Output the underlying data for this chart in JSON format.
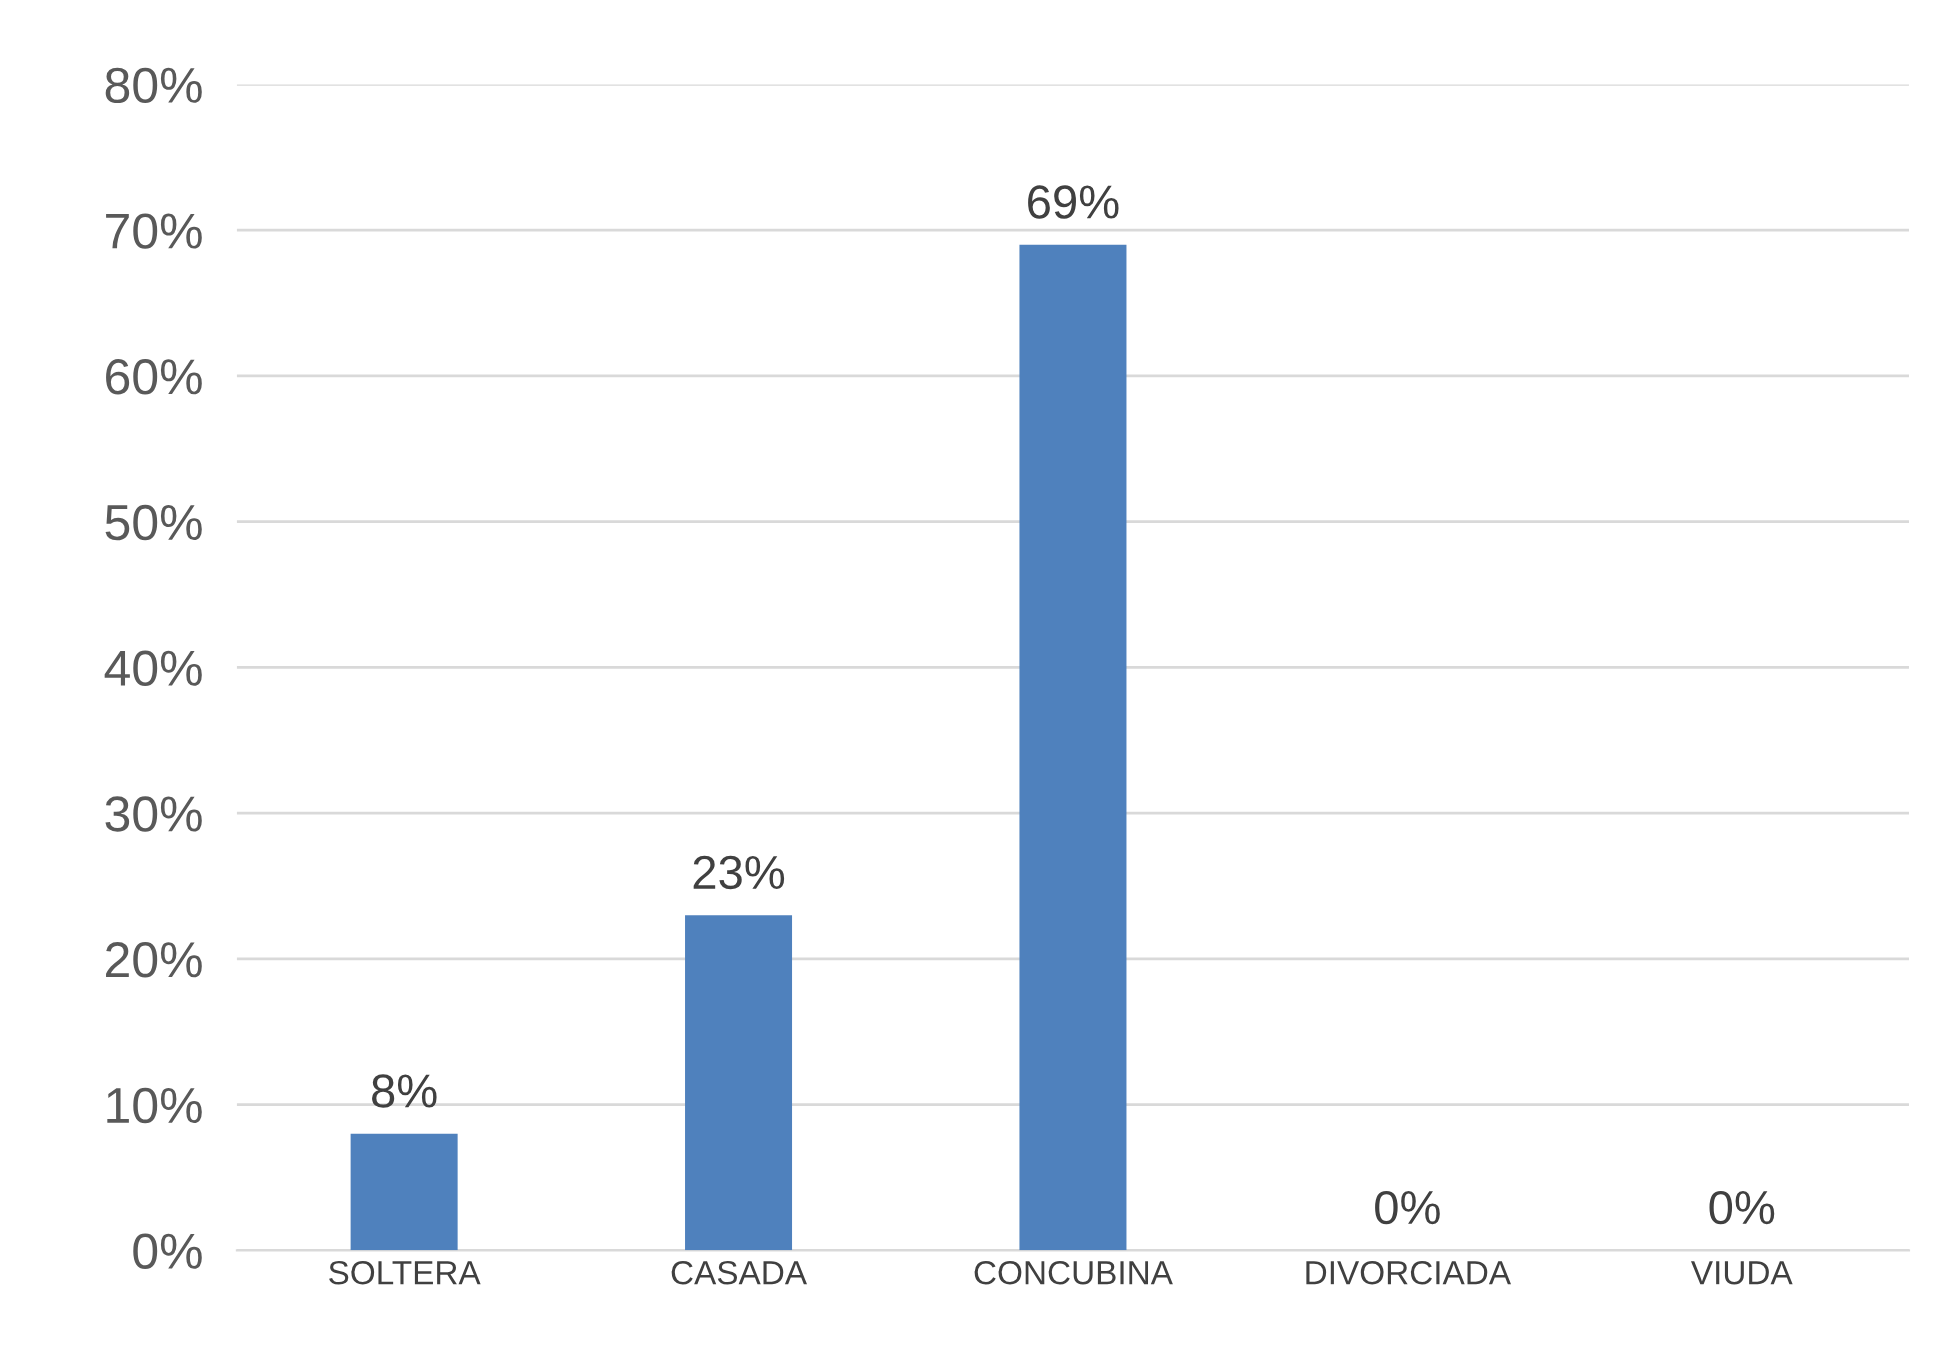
{
  "chart_data": {
    "type": "bar",
    "categories": [
      "SOLTERA",
      "CASADA",
      "CONCUBINA",
      "DIVORCIADA",
      "VIUDA"
    ],
    "values": [
      8,
      23,
      69,
      0,
      0
    ],
    "color": "#4f81bd",
    "value_labels": [
      "8%",
      "23%",
      "69%",
      "0%",
      "0%"
    ],
    "ylim": [
      0,
      80
    ],
    "yticks": [
      {
        "value": 0,
        "label": "0%"
      },
      {
        "value": 10,
        "label": "10%"
      },
      {
        "value": 20,
        "label": "20%"
      },
      {
        "value": 30,
        "label": "30%"
      },
      {
        "value": 40,
        "label": "40%"
      },
      {
        "value": 50,
        "label": "50%"
      },
      {
        "value": 60,
        "label": "60%"
      },
      {
        "value": 70,
        "label": "70%"
      },
      {
        "value": 80,
        "label": "80%"
      }
    ],
    "grid": "y",
    "legend": false
  }
}
